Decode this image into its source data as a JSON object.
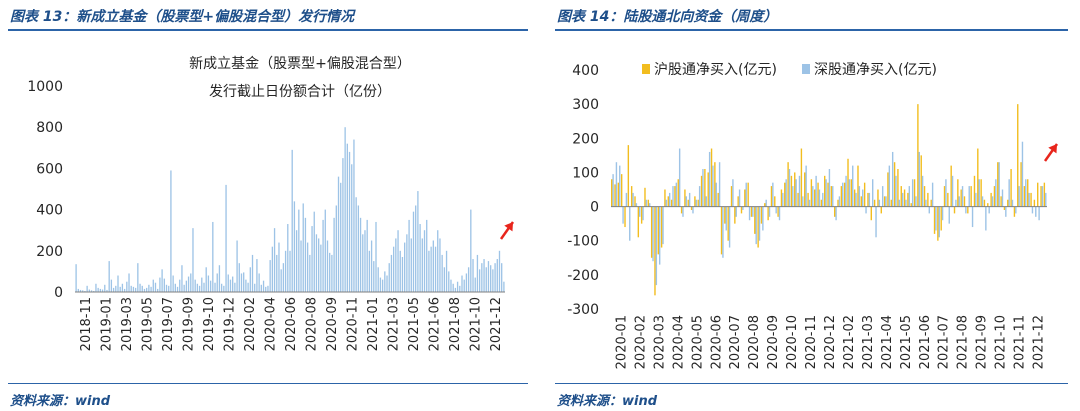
{
  "figures": [
    {
      "caption": "图表 13：新成立基金（股票型+偏股混合型）发行情况",
      "source": "资料来源：wind"
    },
    {
      "caption": "图表 14：陆股通北向资金（周度）",
      "source": "资料来源：wind"
    }
  ],
  "colors": {
    "caption_blue": "#1e4f8a",
    "rule_blue": "#2c64a8",
    "bar_light_blue": "#9dc3e6",
    "bar_gold": "#f2bd1f",
    "arrow_red": "#e8251c"
  },
  "chart_data": [
    {
      "type": "bar",
      "title": "新成立基金（股票型+偏股混合型）",
      "subtitle": "发行截止日份额合计（亿份）",
      "ylim": [
        0,
        1000
      ],
      "yticks": [
        0,
        200,
        400,
        600,
        800,
        1000
      ],
      "xticks": [
        "2018-11",
        "2019-01",
        "2019-03",
        "2019-05",
        "2019-07",
        "2019-09",
        "2019-10",
        "2019-12",
        "2020-02",
        "2020-04",
        "2020-06",
        "2020-08",
        "2020-09",
        "2020-11",
        "2021-01",
        "2021-03",
        "2021-05",
        "2021-06",
        "2021-08",
        "2021-10",
        "2021-12"
      ],
      "grid": false,
      "legend": "none",
      "annotation": "red arrow pointing up-right at latest data",
      "series": [
        {
          "color": "#9dc3e6",
          "values": [
            135,
            15,
            10,
            8,
            5,
            30,
            12,
            8,
            5,
            40,
            20,
            15,
            12,
            35,
            10,
            150,
            60,
            20,
            30,
            80,
            25,
            40,
            15,
            50,
            90,
            30,
            25,
            20,
            140,
            40,
            30,
            15,
            20,
            35,
            25,
            60,
            45,
            15,
            70,
            110,
            65,
            35,
            30,
            590,
            80,
            40,
            25,
            60,
            130,
            35,
            55,
            75,
            90,
            310,
            60,
            40,
            30,
            70,
            45,
            120,
            80,
            55,
            340,
            45,
            90,
            130,
            40,
            30,
            520,
            85,
            60,
            75,
            45,
            250,
            140,
            90,
            95,
            60,
            45,
            120,
            180,
            40,
            160,
            90,
            35,
            55,
            25,
            30,
            155,
            220,
            310,
            180,
            240,
            110,
            140,
            200,
            330,
            200,
            690,
            440,
            300,
            400,
            250,
            430,
            360,
            240,
            180,
            320,
            390,
            280,
            260,
            230,
            350,
            400,
            250,
            190,
            180,
            360,
            420,
            560,
            530,
            650,
            800,
            720,
            680,
            620,
            740,
            460,
            420,
            360,
            280,
            300,
            350,
            200,
            250,
            150,
            340,
            120,
            70,
            60,
            100,
            80,
            140,
            180,
            220,
            260,
            300,
            200,
            170,
            240,
            280,
            350,
            260,
            390,
            420,
            490,
            330,
            260,
            300,
            350,
            200,
            220,
            250,
            220,
            300,
            260,
            180,
            120,
            200,
            100,
            60,
            40,
            20,
            50,
            30,
            80,
            60,
            90,
            120,
            400,
            160,
            70,
            180,
            110,
            140,
            160,
            120,
            150,
            130,
            110,
            140,
            160,
            200,
            140,
            50
          ]
        }
      ]
    },
    {
      "type": "bar",
      "title": "",
      "ylim": [
        -300,
        400
      ],
      "yticks": [
        -300,
        -200,
        -100,
        0,
        100,
        200,
        300,
        400
      ],
      "xticks": [
        "2020-01",
        "2020-02",
        "2020-03",
        "2020-04",
        "2020-05",
        "2020-06",
        "2020-07",
        "2020-08",
        "2020-09",
        "2020-10",
        "2020-11",
        "2020-12",
        "2021-02",
        "2021-03",
        "2021-04",
        "2021-05",
        "2021-06",
        "2021-07",
        "2021-08",
        "2021-09",
        "2021-10",
        "2021-11",
        "2021-12"
      ],
      "grid": false,
      "legend": "top-center",
      "annotation": "red arrow pointing up-right at latest data",
      "series": [
        {
          "name": "沪股通净买入(亿元)",
          "color": "#f2bd1f",
          "values": [
            80,
            65,
            70,
            95,
            -60,
            180,
            60,
            30,
            -90,
            -50,
            55,
            20,
            -150,
            -260,
            -140,
            -120,
            50,
            30,
            20,
            60,
            80,
            -20,
            50,
            20,
            -10,
            30,
            20,
            90,
            110,
            100,
            170,
            130,
            40,
            -140,
            -50,
            -100,
            60,
            -50,
            30,
            -20,
            50,
            70,
            -30,
            -80,
            -120,
            -50,
            10,
            -40,
            60,
            30,
            -30,
            50,
            70,
            130,
            90,
            100,
            40,
            170,
            100,
            40,
            80,
            50,
            70,
            20,
            90,
            70,
            60,
            -30,
            20,
            60,
            70,
            140,
            80,
            50,
            120,
            30,
            70,
            40,
            -40,
            20,
            50,
            -20,
            30,
            100,
            20,
            130,
            110,
            60,
            50,
            40,
            10,
            80,
            300,
            150,
            60,
            40,
            20,
            -80,
            -100,
            -70,
            60,
            40,
            120,
            -20,
            80,
            50,
            30,
            -20,
            60,
            90,
            170,
            80,
            20,
            10,
            40,
            60,
            130,
            30,
            -10,
            20,
            110,
            -30,
            300,
            130,
            60,
            80,
            40,
            20,
            70,
            60,
            70
          ]
        },
        {
          "name": "深股通净买入(亿元)",
          "color": "#9dc3e6",
          "values": [
            95,
            130,
            120,
            -50,
            40,
            -100,
            40,
            10,
            -30,
            -40,
            20,
            10,
            -160,
            -230,
            -170,
            -110,
            20,
            40,
            60,
            70,
            170,
            -30,
            30,
            40,
            -20,
            20,
            60,
            110,
            30,
            160,
            120,
            70,
            130,
            -150,
            -70,
            -120,
            80,
            -30,
            50,
            -10,
            70,
            -40,
            -30,
            -110,
            -100,
            -70,
            20,
            -30,
            70,
            -20,
            -40,
            40,
            80,
            110,
            60,
            80,
            90,
            30,
            120,
            20,
            60,
            90,
            50,
            40,
            80,
            110,
            60,
            -40,
            30,
            70,
            90,
            80,
            120,
            40,
            60,
            50,
            -20,
            40,
            80,
            -90,
            20,
            60,
            30,
            120,
            160,
            90,
            20,
            40,
            20,
            60,
            80,
            30,
            160,
            90,
            20,
            -20,
            70,
            -70,
            -90,
            -40,
            80,
            -50,
            90,
            20,
            30,
            60,
            -20,
            60,
            -60,
            40,
            80,
            30,
            -70,
            -20,
            30,
            80,
            130,
            50,
            -30,
            80,
            20,
            -20,
            60,
            190,
            80,
            40,
            -20,
            -30,
            -40,
            60,
            40
          ]
        }
      ]
    }
  ]
}
